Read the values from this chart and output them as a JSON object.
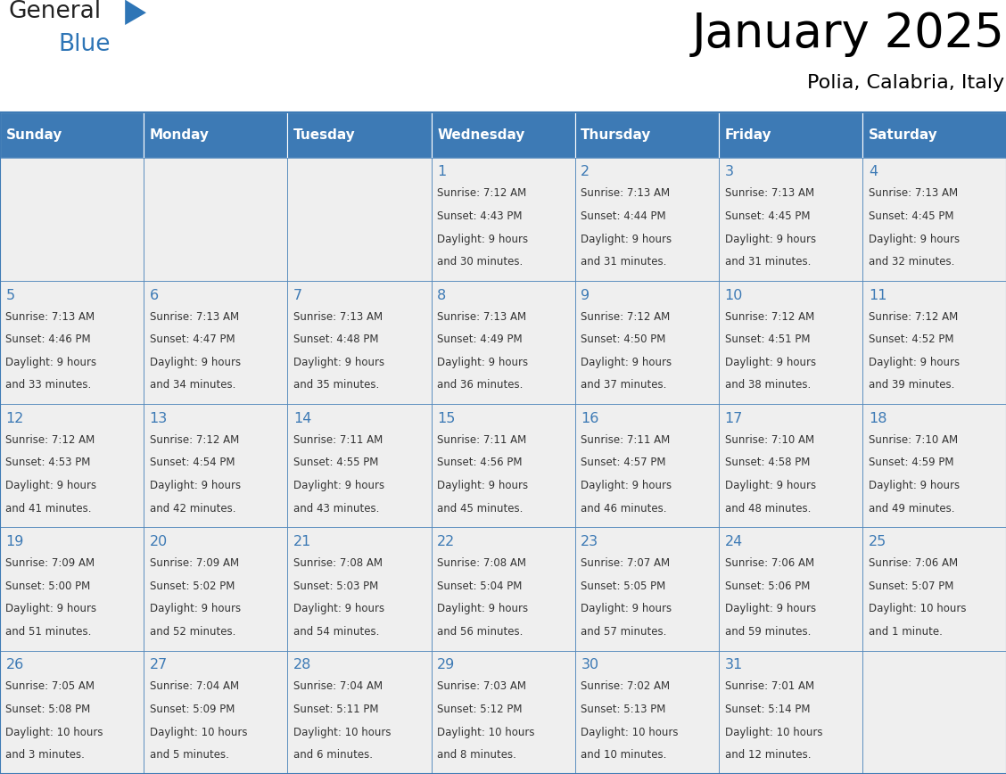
{
  "title": "January 2025",
  "subtitle": "Polia, Calabria, Italy",
  "days_of_week": [
    "Sunday",
    "Monday",
    "Tuesday",
    "Wednesday",
    "Thursday",
    "Friday",
    "Saturday"
  ],
  "header_bg": "#3D7AB5",
  "header_text": "#FFFFFF",
  "cell_bg": "#EFEFEF",
  "border_color": "#3D7AB5",
  "border_line_color": "#3D7AB5",
  "title_color": "#000000",
  "subtitle_color": "#000000",
  "day_num_color": "#3D7AB5",
  "cell_text_color": "#333333",
  "logo_general_color": "#222222",
  "logo_blue_color": "#2E75B6",
  "logo_triangle_color": "#2E75B6",
  "weeks": [
    [
      {
        "day": null,
        "sunrise": null,
        "sunset": null,
        "daylight": null
      },
      {
        "day": null,
        "sunrise": null,
        "sunset": null,
        "daylight": null
      },
      {
        "day": null,
        "sunrise": null,
        "sunset": null,
        "daylight": null
      },
      {
        "day": 1,
        "sunrise": "7:12 AM",
        "sunset": "4:43 PM",
        "daylight": "9 hours and 30 minutes."
      },
      {
        "day": 2,
        "sunrise": "7:13 AM",
        "sunset": "4:44 PM",
        "daylight": "9 hours and 31 minutes."
      },
      {
        "day": 3,
        "sunrise": "7:13 AM",
        "sunset": "4:45 PM",
        "daylight": "9 hours and 31 minutes."
      },
      {
        "day": 4,
        "sunrise": "7:13 AM",
        "sunset": "4:45 PM",
        "daylight": "9 hours and 32 minutes."
      }
    ],
    [
      {
        "day": 5,
        "sunrise": "7:13 AM",
        "sunset": "4:46 PM",
        "daylight": "9 hours and 33 minutes."
      },
      {
        "day": 6,
        "sunrise": "7:13 AM",
        "sunset": "4:47 PM",
        "daylight": "9 hours and 34 minutes."
      },
      {
        "day": 7,
        "sunrise": "7:13 AM",
        "sunset": "4:48 PM",
        "daylight": "9 hours and 35 minutes."
      },
      {
        "day": 8,
        "sunrise": "7:13 AM",
        "sunset": "4:49 PM",
        "daylight": "9 hours and 36 minutes."
      },
      {
        "day": 9,
        "sunrise": "7:12 AM",
        "sunset": "4:50 PM",
        "daylight": "9 hours and 37 minutes."
      },
      {
        "day": 10,
        "sunrise": "7:12 AM",
        "sunset": "4:51 PM",
        "daylight": "9 hours and 38 minutes."
      },
      {
        "day": 11,
        "sunrise": "7:12 AM",
        "sunset": "4:52 PM",
        "daylight": "9 hours and 39 minutes."
      }
    ],
    [
      {
        "day": 12,
        "sunrise": "7:12 AM",
        "sunset": "4:53 PM",
        "daylight": "9 hours and 41 minutes."
      },
      {
        "day": 13,
        "sunrise": "7:12 AM",
        "sunset": "4:54 PM",
        "daylight": "9 hours and 42 minutes."
      },
      {
        "day": 14,
        "sunrise": "7:11 AM",
        "sunset": "4:55 PM",
        "daylight": "9 hours and 43 minutes."
      },
      {
        "day": 15,
        "sunrise": "7:11 AM",
        "sunset": "4:56 PM",
        "daylight": "9 hours and 45 minutes."
      },
      {
        "day": 16,
        "sunrise": "7:11 AM",
        "sunset": "4:57 PM",
        "daylight": "9 hours and 46 minutes."
      },
      {
        "day": 17,
        "sunrise": "7:10 AM",
        "sunset": "4:58 PM",
        "daylight": "9 hours and 48 minutes."
      },
      {
        "day": 18,
        "sunrise": "7:10 AM",
        "sunset": "4:59 PM",
        "daylight": "9 hours and 49 minutes."
      }
    ],
    [
      {
        "day": 19,
        "sunrise": "7:09 AM",
        "sunset": "5:00 PM",
        "daylight": "9 hours and 51 minutes."
      },
      {
        "day": 20,
        "sunrise": "7:09 AM",
        "sunset": "5:02 PM",
        "daylight": "9 hours and 52 minutes."
      },
      {
        "day": 21,
        "sunrise": "7:08 AM",
        "sunset": "5:03 PM",
        "daylight": "9 hours and 54 minutes."
      },
      {
        "day": 22,
        "sunrise": "7:08 AM",
        "sunset": "5:04 PM",
        "daylight": "9 hours and 56 minutes."
      },
      {
        "day": 23,
        "sunrise": "7:07 AM",
        "sunset": "5:05 PM",
        "daylight": "9 hours and 57 minutes."
      },
      {
        "day": 24,
        "sunrise": "7:06 AM",
        "sunset": "5:06 PM",
        "daylight": "9 hours and 59 minutes."
      },
      {
        "day": 25,
        "sunrise": "7:06 AM",
        "sunset": "5:07 PM",
        "daylight": "10 hours and 1 minute."
      }
    ],
    [
      {
        "day": 26,
        "sunrise": "7:05 AM",
        "sunset": "5:08 PM",
        "daylight": "10 hours and 3 minutes."
      },
      {
        "day": 27,
        "sunrise": "7:04 AM",
        "sunset": "5:09 PM",
        "daylight": "10 hours and 5 minutes."
      },
      {
        "day": 28,
        "sunrise": "7:04 AM",
        "sunset": "5:11 PM",
        "daylight": "10 hours and 6 minutes."
      },
      {
        "day": 29,
        "sunrise": "7:03 AM",
        "sunset": "5:12 PM",
        "daylight": "10 hours and 8 minutes."
      },
      {
        "day": 30,
        "sunrise": "7:02 AM",
        "sunset": "5:13 PM",
        "daylight": "10 hours and 10 minutes."
      },
      {
        "day": 31,
        "sunrise": "7:01 AM",
        "sunset": "5:14 PM",
        "daylight": "10 hours and 12 minutes."
      },
      {
        "day": null,
        "sunrise": null,
        "sunset": null,
        "daylight": null
      }
    ]
  ]
}
